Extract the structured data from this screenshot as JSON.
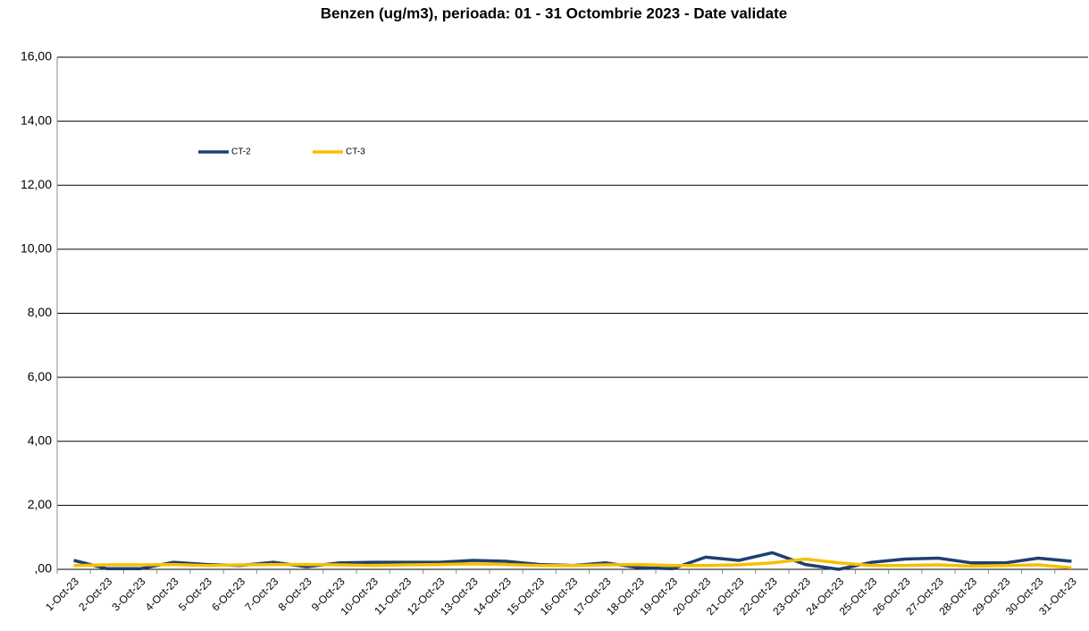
{
  "chart_data": {
    "type": "line",
    "title": "Benzen (ug/m3), perioada: 01 - 31 Octombrie 2023 - Date validate",
    "categories": [
      "1-Oct-23",
      "2-Oct-23",
      "3-Oct-23",
      "4-Oct-23",
      "5-Oct-23",
      "6-Oct-23",
      "7-Oct-23",
      "8-Oct-23",
      "9-Oct-23",
      "10-Oct-23",
      "11-Oct-23",
      "12-Oct-23",
      "13-Oct-23",
      "14-Oct-23",
      "15-Oct-23",
      "16-Oct-23",
      "17-Oct-23",
      "18-Oct-23",
      "19-Oct-23",
      "20-Oct-23",
      "21-Oct-23",
      "22-Oct-23",
      "23-Oct-23",
      "24-Oct-23",
      "25-Oct-23",
      "26-Oct-23",
      "27-Oct-23",
      "28-Oct-23",
      "29-Oct-23",
      "30-Oct-23",
      "31-Oct-23"
    ],
    "series": [
      {
        "name": "CT-2",
        "color": "#1f3f6e",
        "values": [
          0.28,
          0.02,
          0.02,
          0.22,
          0.15,
          0.12,
          0.22,
          0.08,
          0.2,
          0.22,
          0.22,
          0.22,
          0.28,
          0.25,
          0.15,
          0.12,
          0.2,
          0.05,
          0.02,
          0.38,
          0.28,
          0.52,
          0.15,
          0.0,
          0.22,
          0.32,
          0.35,
          0.2,
          0.2,
          0.35,
          0.25
        ]
      },
      {
        "name": "CT-3",
        "color": "#f5c000",
        "values": [
          0.12,
          0.14,
          0.14,
          0.15,
          0.12,
          0.14,
          0.15,
          0.15,
          0.14,
          0.12,
          0.14,
          0.15,
          0.17,
          0.15,
          0.12,
          0.12,
          0.14,
          0.15,
          0.12,
          0.12,
          0.14,
          0.2,
          0.32,
          0.2,
          0.12,
          0.12,
          0.14,
          0.1,
          0.12,
          0.14,
          0.05
        ]
      }
    ],
    "ylim": [
      0,
      16
    ],
    "yticks": [
      {
        "value": 0,
        "label": ",00"
      },
      {
        "value": 2,
        "label": "2,00"
      },
      {
        "value": 4,
        "label": "4,00"
      },
      {
        "value": 6,
        "label": "6,00"
      },
      {
        "value": 8,
        "label": "8,00"
      },
      {
        "value": 10,
        "label": "10,00"
      },
      {
        "value": 12,
        "label": "12,00"
      },
      {
        "value": 14,
        "label": "14,00"
      },
      {
        "value": 16,
        "label": "16,00"
      }
    ],
    "grid": true,
    "legend": "top-left"
  }
}
